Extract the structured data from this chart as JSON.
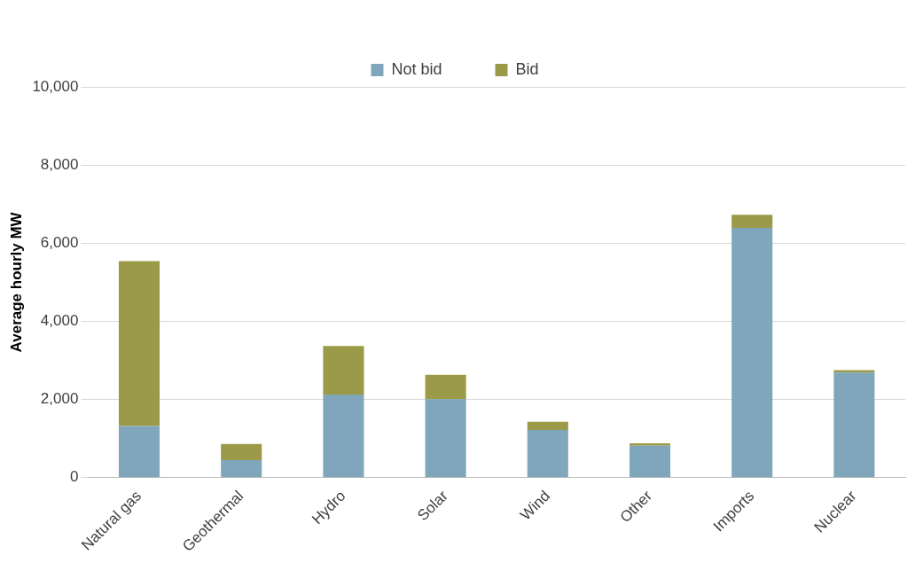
{
  "chart_data": {
    "type": "bar",
    "stacked": true,
    "ylabel": "Average hourly MW",
    "categories": [
      "Natural gas",
      "Geothermal",
      "Hydro",
      "Solar",
      "Wind",
      "Other",
      "Imports",
      "Nuclear"
    ],
    "series": [
      {
        "name": "Not bid",
        "color": "#7fa6bb",
        "values": [
          1320,
          450,
          2130,
          2010,
          1220,
          820,
          6390,
          2690
        ]
      },
      {
        "name": "Bid",
        "color": "#9a9a48",
        "values": [
          4220,
          410,
          1240,
          620,
          210,
          60,
          340,
          60
        ]
      }
    ],
    "ylim": [
      0,
      10000
    ],
    "yticks": [
      {
        "value": 0,
        "label": "0"
      },
      {
        "value": 2000,
        "label": "2,000"
      },
      {
        "value": 4000,
        "label": "4,000"
      },
      {
        "value": 6000,
        "label": "6,000"
      },
      {
        "value": 8000,
        "label": "8,000"
      },
      {
        "value": 10000,
        "label": "10,000"
      }
    ],
    "grid": "y",
    "legend": "top"
  }
}
